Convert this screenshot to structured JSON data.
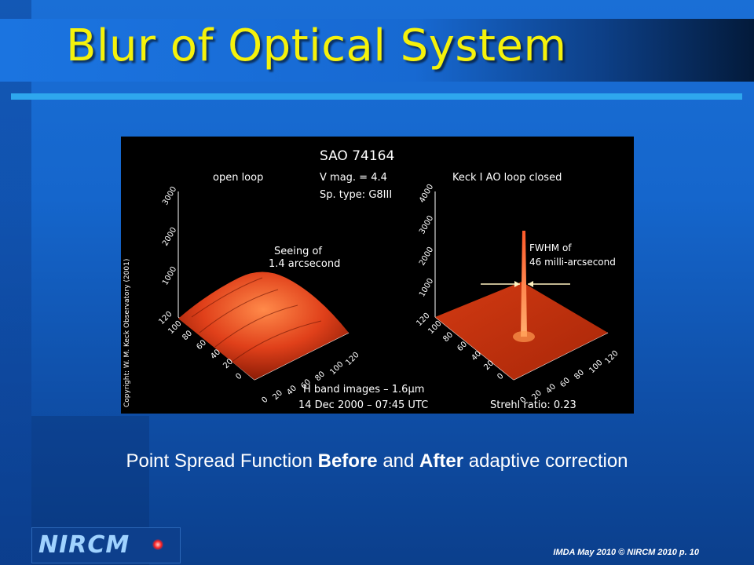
{
  "slide": {
    "title": "Blur of Optical System",
    "caption_prefix": "Point Spread Function ",
    "caption_bold1": "Before",
    "caption_mid": " and ",
    "caption_bold2": "After",
    "caption_suffix": " adaptive correction",
    "footer": "IMDA May 2010 © NIRCM 2010  p. 10",
    "logo_text": "NIRCM"
  },
  "figure": {
    "title": "SAO 74164",
    "left_label": "open loop",
    "center_line1": "V mag. = 4.4",
    "center_line2": "Sp. type: G8III",
    "right_label": "Keck I AO loop closed",
    "seeing_line1": "Seeing of",
    "seeing_line2": "1.4 arcsecond",
    "fwhm_line1": "FWHM of",
    "fwhm_line2": "46 milli-arcsecond",
    "band_line": "H band images – 1.6μm",
    "date_line": "14 Dec 2000 – 07:45 UTC",
    "strehl_line": "Strehl ratio: 0.23",
    "copyright": "Copyright: W. M. Keck Observatory (2001)",
    "left_z_ticks": [
      "1000",
      "2000",
      "3000"
    ],
    "right_z_ticks": [
      "1000",
      "2000",
      "3000",
      "4000"
    ],
    "y_ticks": [
      "0",
      "20",
      "40",
      "60",
      "80",
      "100",
      "120"
    ],
    "x_ticks": [
      "0",
      "20",
      "40",
      "60",
      "80",
      "100",
      "120"
    ]
  },
  "colors": {
    "title": "#f5f20b",
    "divider": "#2ea7ee",
    "surface": "#e0401a"
  }
}
